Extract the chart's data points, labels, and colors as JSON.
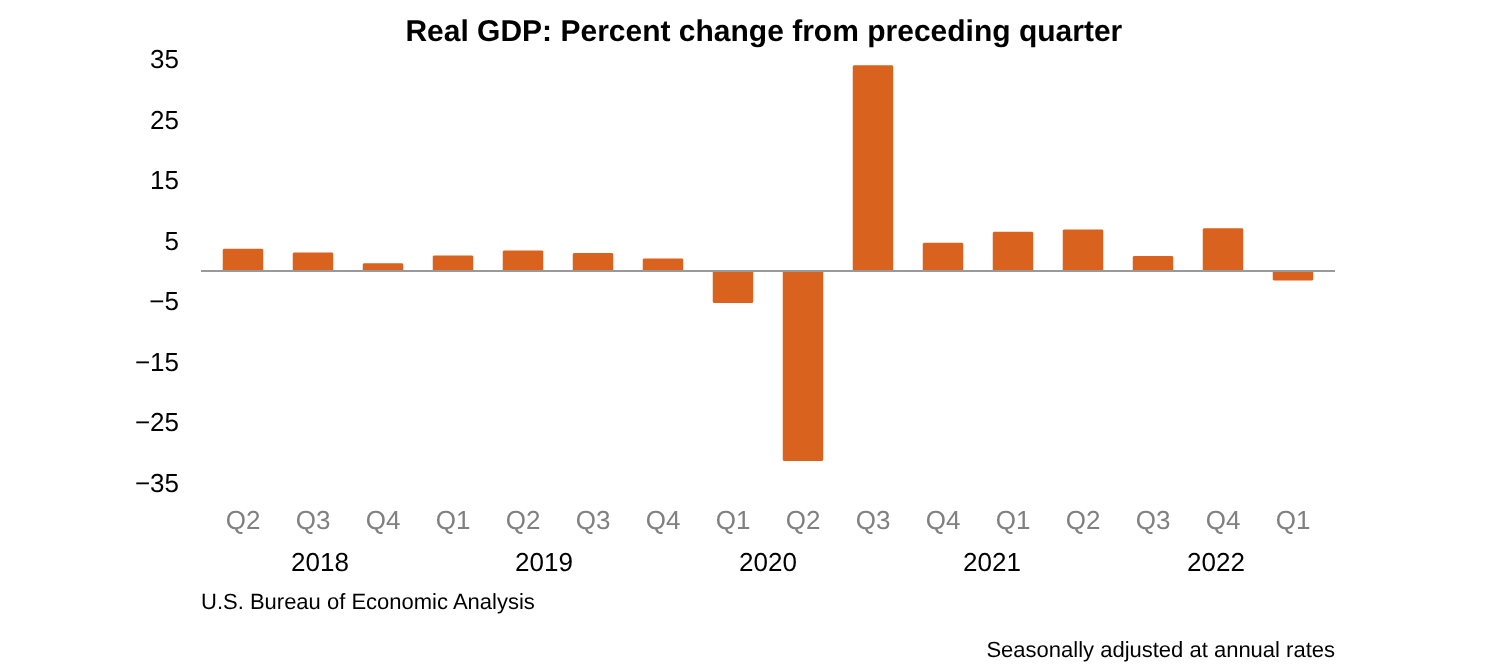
{
  "chart_data": {
    "type": "bar",
    "title": "Real GDP:  Percent change from preceding quarter",
    "categories": [
      "Q2",
      "Q3",
      "Q4",
      "Q1",
      "Q2",
      "Q3",
      "Q4",
      "Q1",
      "Q2",
      "Q3",
      "Q4",
      "Q1",
      "Q2",
      "Q3",
      "Q4",
      "Q1"
    ],
    "values": [
      3.5,
      2.9,
      1.1,
      2.4,
      3.2,
      2.8,
      1.9,
      -5.1,
      -31.2,
      33.8,
      4.5,
      6.3,
      6.7,
      2.3,
      6.9,
      -1.4
    ],
    "color": "#d9631e",
    "ylim": [
      -35,
      35
    ],
    "yticks": [
      -35,
      -25,
      -15,
      -5,
      5,
      15,
      25,
      35
    ],
    "grid": false,
    "annotations": [
      "2018",
      "2019",
      "2020",
      "2021",
      "2022",
      "U.S. Bureau of Economic Analysis",
      "Seasonally adjusted at annual rates"
    ]
  }
}
